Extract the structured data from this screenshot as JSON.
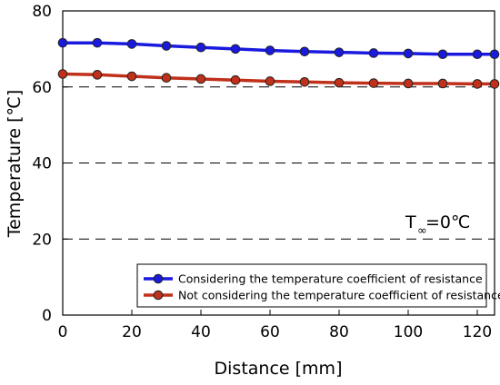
{
  "chart_data": {
    "type": "line",
    "xlabel": "Distance [mm]",
    "ylabel": "Temperature [℃]",
    "xlim": [
      0,
      125
    ],
    "ylim": [
      0,
      80
    ],
    "x_ticks": [
      "0",
      "20",
      "40",
      "60",
      "80",
      "100",
      "120"
    ],
    "y_ticks": [
      "0",
      "20",
      "40",
      "60",
      "80"
    ],
    "reference_lines_y": [
      20,
      40,
      60
    ],
    "legend_position": "bottom-right",
    "annotation": {
      "main": "T",
      "sub": "∞",
      "rest": " =0℃"
    },
    "x": [
      0,
      10,
      20,
      30,
      40,
      50,
      60,
      70,
      80,
      90,
      100,
      110,
      120,
      125
    ],
    "series": [
      {
        "name": "Considering the temperature coefficient of resistance",
        "color": "#1a1adf",
        "values": [
          71.6,
          71.6,
          71.3,
          70.8,
          70.4,
          70.0,
          69.6,
          69.3,
          69.1,
          68.9,
          68.8,
          68.6,
          68.6,
          68.6
        ]
      },
      {
        "name": "Not considering the temperature coefficient of resistance",
        "color": "#c0301a",
        "values": [
          63.4,
          63.2,
          62.8,
          62.4,
          62.1,
          61.8,
          61.5,
          61.3,
          61.1,
          61.0,
          60.9,
          60.9,
          60.8,
          60.8
        ]
      }
    ]
  }
}
